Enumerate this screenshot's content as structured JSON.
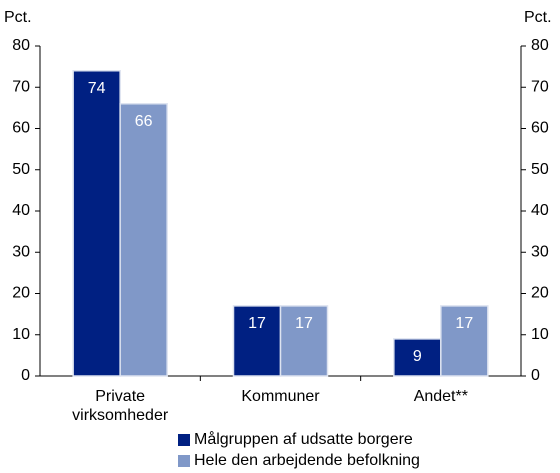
{
  "chart_data": {
    "type": "bar",
    "y_label": "Pct.",
    "categories": [
      "Private virksomheder",
      "Kommuner",
      "Andet**"
    ],
    "series": [
      {
        "name": "Målgruppen af udsatte borgere",
        "color": "#002082",
        "values": [
          74,
          17,
          9
        ]
      },
      {
        "name": "Hele den arbejdende befolkning",
        "color": "#8098c8",
        "values": [
          66,
          17,
          17
        ]
      }
    ],
    "ylim": [
      0,
      80
    ],
    "yticks": [
      0,
      10,
      20,
      30,
      40,
      50,
      60,
      70,
      80
    ],
    "y2lim": [
      0,
      80
    ],
    "y2ticks": [
      0,
      10,
      20,
      30,
      40,
      50,
      60,
      70,
      80
    ],
    "grid": false,
    "legend": "bottom"
  }
}
